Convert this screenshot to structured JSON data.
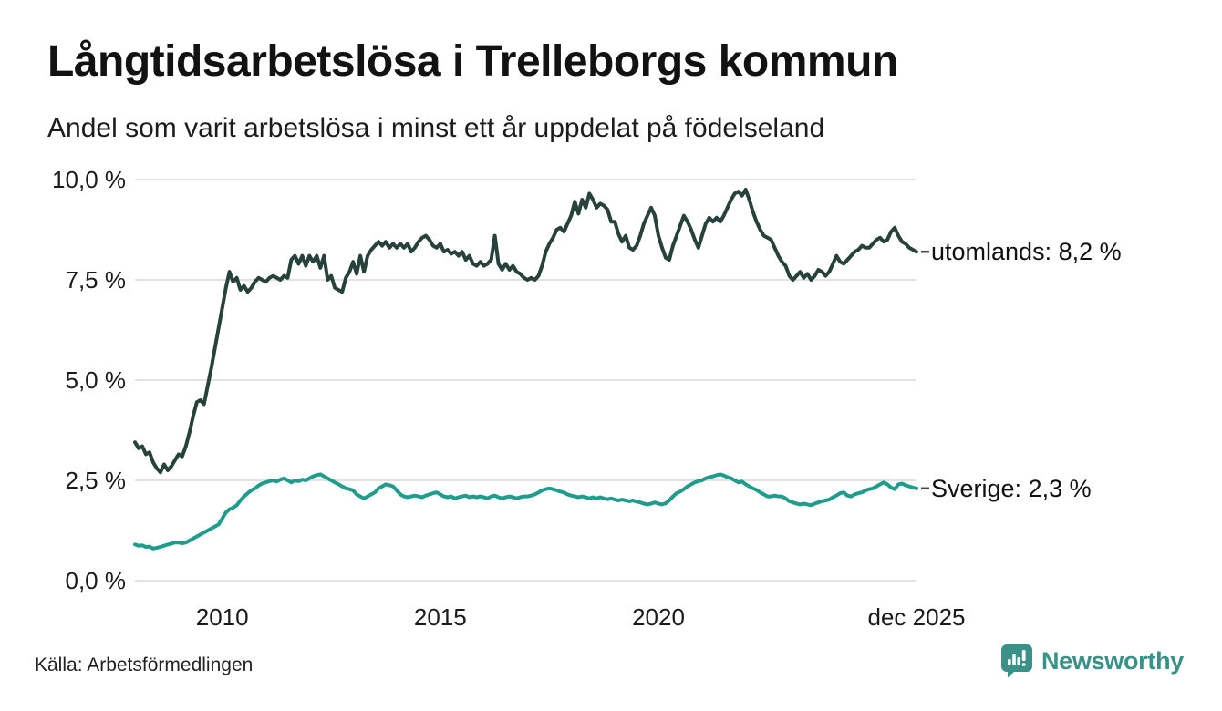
{
  "header": {
    "title": "Långtidsarbetslösa i Trelleborgs kommun",
    "subtitle": "Andel som varit arbetslösa i minst ett år uppdelat på födelseland"
  },
  "footer": {
    "source": "Källa: Arbetsförmedlingen",
    "brand": "Newsworthy",
    "brand_color": "#3a9188"
  },
  "chart_data": {
    "type": "line",
    "title": "Långtidsarbetslösa i Trelleborgs kommun",
    "subtitle": "Andel som varit arbetslösa i minst ett år uppdelat på födelseland",
    "source": "Källa: Arbetsförmedlingen",
    "x_start": "2008-01",
    "x_end": "2025-12",
    "frequency": "monthly",
    "ylim": [
      0,
      10
    ],
    "grid": "horizontal",
    "gridline_color": "#e2e2e2",
    "connector_color": "#444444",
    "yticks": [
      {
        "value": 0,
        "label": "0,0 %"
      },
      {
        "value": 2.5,
        "label": "2,5 %"
      },
      {
        "value": 5,
        "label": "5,0 %"
      },
      {
        "value": 7.5,
        "label": "7,5 %"
      },
      {
        "value": 10,
        "label": "10,0 %"
      }
    ],
    "xticks": [
      {
        "label": "2010",
        "month_index": 24
      },
      {
        "label": "2015",
        "month_index": 84
      },
      {
        "label": "2020",
        "month_index": 144
      },
      {
        "label": "dec 2025",
        "month_index": 215
      }
    ],
    "series": [
      {
        "name": "utomlands",
        "end_label": "utomlands: 8,2 %",
        "end_value": 8.2,
        "color": "#27423a",
        "values": [
          3.45,
          3.3,
          3.35,
          3.15,
          3.2,
          2.95,
          2.8,
          2.7,
          2.9,
          2.75,
          2.85,
          3.0,
          3.15,
          3.1,
          3.35,
          3.7,
          4.1,
          4.45,
          4.5,
          4.4,
          4.85,
          5.3,
          5.8,
          6.3,
          6.8,
          7.3,
          7.7,
          7.45,
          7.55,
          7.25,
          7.35,
          7.2,
          7.3,
          7.45,
          7.55,
          7.5,
          7.45,
          7.55,
          7.6,
          7.55,
          7.5,
          7.6,
          7.55,
          8.0,
          8.1,
          7.9,
          8.1,
          7.85,
          8.1,
          7.95,
          8.1,
          7.8,
          8.1,
          7.5,
          7.6,
          7.3,
          7.25,
          7.2,
          7.55,
          7.7,
          7.95,
          7.65,
          8.1,
          7.7,
          8.1,
          8.25,
          8.35,
          8.45,
          8.35,
          8.45,
          8.3,
          8.4,
          8.3,
          8.4,
          8.3,
          8.4,
          8.2,
          8.3,
          8.45,
          8.55,
          8.6,
          8.5,
          8.35,
          8.3,
          8.4,
          8.2,
          8.25,
          8.15,
          8.2,
          8.1,
          8.2,
          8.0,
          8.1,
          7.9,
          7.85,
          7.95,
          7.85,
          7.9,
          8.0,
          8.6,
          7.9,
          7.75,
          7.9,
          7.75,
          7.85,
          7.7,
          7.65,
          7.55,
          7.5,
          7.55,
          7.5,
          7.6,
          7.85,
          8.2,
          8.4,
          8.55,
          8.75,
          8.8,
          8.7,
          8.9,
          9.1,
          9.45,
          9.15,
          9.5,
          9.3,
          9.65,
          9.5,
          9.3,
          9.4,
          9.35,
          9.25,
          8.95,
          8.95,
          8.65,
          8.45,
          8.6,
          8.3,
          8.25,
          8.35,
          8.6,
          8.9,
          9.1,
          9.3,
          9.1,
          8.6,
          8.3,
          8.05,
          8.0,
          8.35,
          8.6,
          8.85,
          9.1,
          8.95,
          8.75,
          8.5,
          8.3,
          8.6,
          8.9,
          9.05,
          8.95,
          9.05,
          8.95,
          9.1,
          9.3,
          9.5,
          9.65,
          9.7,
          9.6,
          9.75,
          9.5,
          9.2,
          8.95,
          8.75,
          8.6,
          8.55,
          8.5,
          8.3,
          8.1,
          7.95,
          7.85,
          7.6,
          7.5,
          7.6,
          7.7,
          7.55,
          7.65,
          7.5,
          7.6,
          7.75,
          7.7,
          7.6,
          7.7,
          7.9,
          8.1,
          7.95,
          7.9,
          8.0,
          8.1,
          8.2,
          8.25,
          8.35,
          8.3,
          8.3,
          8.4,
          8.5,
          8.55,
          8.45,
          8.5,
          8.7,
          8.8,
          8.6,
          8.45,
          8.4,
          8.3,
          8.25,
          8.2
        ]
      },
      {
        "name": "Sverige",
        "end_label": "Sverige: 2,3 %",
        "end_value": 2.3,
        "color": "#1f9c8c",
        "values": [
          0.9,
          0.87,
          0.88,
          0.84,
          0.85,
          0.8,
          0.82,
          0.84,
          0.87,
          0.9,
          0.92,
          0.95,
          0.95,
          0.93,
          0.95,
          1.0,
          1.05,
          1.1,
          1.15,
          1.2,
          1.25,
          1.3,
          1.35,
          1.4,
          1.55,
          1.7,
          1.78,
          1.82,
          1.88,
          2.0,
          2.1,
          2.18,
          2.25,
          2.3,
          2.37,
          2.42,
          2.45,
          2.48,
          2.5,
          2.47,
          2.52,
          2.55,
          2.5,
          2.45,
          2.5,
          2.48,
          2.52,
          2.5,
          2.55,
          2.6,
          2.63,
          2.65,
          2.6,
          2.55,
          2.5,
          2.45,
          2.4,
          2.35,
          2.3,
          2.28,
          2.25,
          2.15,
          2.1,
          2.05,
          2.1,
          2.15,
          2.2,
          2.3,
          2.35,
          2.4,
          2.38,
          2.35,
          2.25,
          2.15,
          2.1,
          2.08,
          2.1,
          2.12,
          2.1,
          2.08,
          2.12,
          2.15,
          2.18,
          2.2,
          2.15,
          2.1,
          2.08,
          2.1,
          2.05,
          2.08,
          2.1,
          2.12,
          2.08,
          2.1,
          2.08,
          2.1,
          2.08,
          2.05,
          2.1,
          2.12,
          2.08,
          2.05,
          2.08,
          2.1,
          2.08,
          2.05,
          2.08,
          2.1,
          2.1,
          2.12,
          2.15,
          2.2,
          2.25,
          2.28,
          2.3,
          2.28,
          2.25,
          2.22,
          2.2,
          2.15,
          2.12,
          2.1,
          2.08,
          2.1,
          2.08,
          2.05,
          2.08,
          2.05,
          2.08,
          2.05,
          2.03,
          2.05,
          2.02,
          2.0,
          2.02,
          2.0,
          1.98,
          2.0,
          1.97,
          1.95,
          1.92,
          1.9,
          1.92,
          1.95,
          1.92,
          1.9,
          1.93,
          2.0,
          2.1,
          2.18,
          2.22,
          2.28,
          2.35,
          2.4,
          2.45,
          2.48,
          2.5,
          2.55,
          2.58,
          2.6,
          2.63,
          2.65,
          2.62,
          2.58,
          2.55,
          2.5,
          2.45,
          2.47,
          2.4,
          2.35,
          2.3,
          2.26,
          2.2,
          2.15,
          2.1,
          2.1,
          2.12,
          2.1,
          2.1,
          2.05,
          1.98,
          1.95,
          1.92,
          1.9,
          1.92,
          1.9,
          1.88,
          1.92,
          1.95,
          1.98,
          2.0,
          2.02,
          2.08,
          2.12,
          2.18,
          2.2,
          2.12,
          2.1,
          2.15,
          2.18,
          2.2,
          2.25,
          2.28,
          2.3,
          2.35,
          2.4,
          2.45,
          2.4,
          2.32,
          2.28,
          2.4,
          2.42,
          2.38,
          2.35,
          2.32,
          2.3
        ]
      }
    ]
  }
}
